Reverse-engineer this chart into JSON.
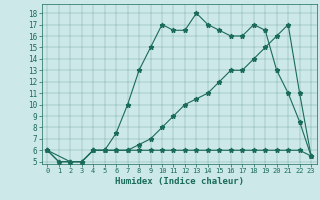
{
  "title": "",
  "xlabel": "Humidex (Indice chaleur)",
  "bg_color": "#cce8e8",
  "line_color": "#1a6b5a",
  "xlim_min": -0.5,
  "xlim_max": 23.5,
  "ylim_min": 4.8,
  "ylim_max": 18.8,
  "xticks": [
    0,
    1,
    2,
    3,
    4,
    5,
    6,
    7,
    8,
    9,
    10,
    11,
    12,
    13,
    14,
    15,
    16,
    17,
    18,
    19,
    20,
    21,
    22,
    23
  ],
  "yticks": [
    5,
    6,
    7,
    8,
    9,
    10,
    11,
    12,
    13,
    14,
    15,
    16,
    17,
    18
  ],
  "line1_x": [
    0,
    1,
    2,
    3,
    4,
    5,
    6,
    7,
    8,
    9,
    10,
    11,
    12,
    13,
    14,
    15,
    16,
    17,
    18,
    19,
    20,
    21,
    22,
    23
  ],
  "line1_y": [
    6,
    5,
    5,
    5,
    6,
    6,
    6,
    6,
    6,
    6,
    6,
    6,
    6,
    6,
    6,
    6,
    6,
    6,
    6,
    6,
    6,
    6,
    6,
    5.5
  ],
  "line2_x": [
    0,
    2,
    3,
    4,
    5,
    6,
    7,
    8,
    9,
    10,
    11,
    12,
    13,
    14,
    15,
    16,
    17,
    18,
    19,
    20,
    21,
    22,
    23
  ],
  "line2_y": [
    6,
    5,
    5,
    6,
    6,
    7.5,
    10,
    13,
    15,
    17,
    16.5,
    16.5,
    18,
    17,
    16.5,
    16,
    16,
    17,
    16.5,
    13,
    11,
    8.5,
    5.5
  ],
  "line3_x": [
    0,
    1,
    2,
    3,
    4,
    5,
    6,
    7,
    8,
    9,
    10,
    11,
    12,
    13,
    14,
    15,
    16,
    17,
    18,
    19,
    20,
    21,
    22,
    23
  ],
  "line3_y": [
    6,
    5,
    5,
    5,
    6,
    6,
    6,
    6,
    6.5,
    7,
    8,
    9,
    10,
    10.5,
    11,
    12,
    13,
    13,
    14,
    15,
    16,
    17,
    11,
    5.5
  ]
}
